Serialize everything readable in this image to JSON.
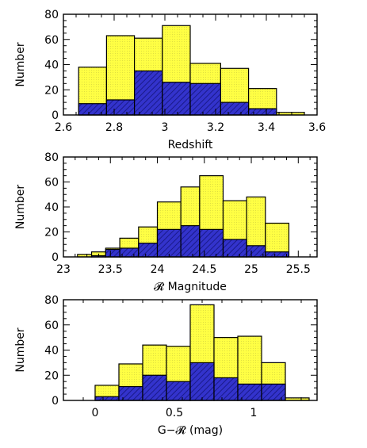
{
  "colors": {
    "outer": "#ffff44",
    "inner": "#3333cc",
    "hatch": "#1a1a8a",
    "stroke": "#000000"
  },
  "chart_data": [
    {
      "type": "bar",
      "xlabel": "Redshift",
      "ylabel": "Number",
      "xlim": [
        2.6,
        3.6
      ],
      "ylim": [
        0,
        80
      ],
      "xticks": [
        2.6,
        2.8,
        3.0,
        3.2,
        3.4,
        3.6
      ],
      "xtick_labels": [
        "2.6",
        "2.8",
        "3",
        "3.2",
        "3.4",
        "3.6"
      ],
      "yticks": [
        0,
        20,
        40,
        60,
        80
      ],
      "ytick_labels": [
        "0",
        "20",
        "40",
        "60",
        "80"
      ],
      "bin_edges": [
        2.66,
        2.77,
        2.88,
        2.99,
        3.1,
        3.22,
        3.33,
        3.44,
        3.55
      ],
      "series": [
        {
          "values": [
            38,
            63,
            61,
            71,
            41,
            37,
            21,
            2
          ]
        },
        {
          "values": [
            9,
            12,
            35,
            26,
            25,
            10,
            5,
            0
          ]
        }
      ]
    },
    {
      "type": "bar",
      "xlabel": "𝓡 Magnitude",
      "ylabel": "Number",
      "xlim": [
        23.0,
        25.7
      ],
      "ylim": [
        0,
        80
      ],
      "xticks": [
        23.0,
        23.5,
        24.0,
        24.5,
        25.0,
        25.5
      ],
      "xtick_labels": [
        "23",
        "23.5",
        "24",
        "24.5",
        "25",
        "25.5"
      ],
      "yticks": [
        0,
        20,
        40,
        60,
        80
      ],
      "ytick_labels": [
        "0",
        "20",
        "40",
        "60",
        "80"
      ],
      "bin_edges": [
        23.15,
        23.3,
        23.45,
        23.6,
        23.8,
        24.0,
        24.25,
        24.45,
        24.7,
        24.95,
        25.15,
        25.4,
        25.65
      ],
      "series": [
        {
          "values": [
            2,
            4,
            7,
            15,
            24,
            44,
            56,
            65,
            45,
            48,
            27,
            0
          ]
        },
        {
          "values": [
            0,
            1,
            6,
            7,
            11,
            22,
            25,
            22,
            14,
            9,
            4,
            0
          ]
        }
      ]
    },
    {
      "type": "bar",
      "xlabel": "G−𝓡 (mag)",
      "ylabel": "Number",
      "xlim": [
        -0.2,
        1.4
      ],
      "ylim": [
        0,
        80
      ],
      "xticks": [
        0,
        0.5,
        1.0
      ],
      "xtick_labels": [
        "0",
        "0.5",
        "1"
      ],
      "yticks": [
        0,
        20,
        40,
        60,
        80
      ],
      "ytick_labels": [
        "0",
        "20",
        "40",
        "60",
        "80"
      ],
      "bin_edges": [
        0.0,
        0.15,
        0.3,
        0.45,
        0.6,
        0.75,
        0.9,
        1.05,
        1.2,
        1.35
      ],
      "series": [
        {
          "values": [
            12,
            29,
            44,
            43,
            76,
            50,
            51,
            30,
            2
          ]
        },
        {
          "values": [
            3,
            11,
            20,
            15,
            30,
            18,
            13,
            13,
            0
          ]
        }
      ]
    }
  ]
}
